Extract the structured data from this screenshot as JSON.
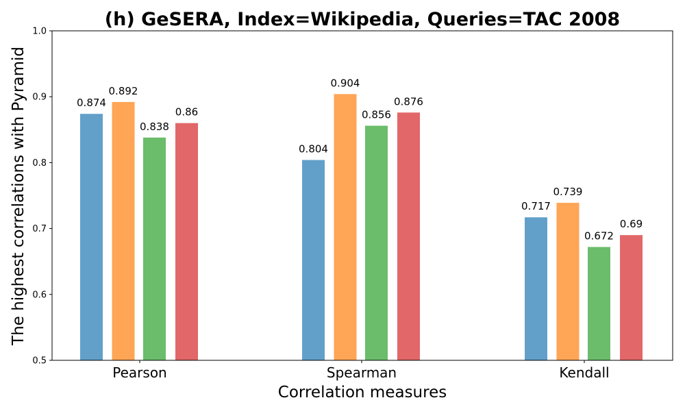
{
  "chart_data": {
    "type": "bar",
    "title": "(h) GeSERA, Index=Wikipedia, Queries=TAC 2008",
    "xlabel": "Correlation measures",
    "ylabel": "The highest correlations with Pyramid",
    "categories": [
      "Pearson",
      "Spearman",
      "Kendall"
    ],
    "ylim": [
      0.5,
      1.0
    ],
    "yticks": [
      "0.5",
      "0.6",
      "0.7",
      "0.8",
      "0.9",
      "1.0"
    ],
    "grid": false,
    "series": [
      {
        "values": [
          0.874,
          0.804,
          0.717
        ],
        "labels": [
          "0.874",
          "0.804",
          "0.717"
        ],
        "color": "#1f77b4"
      },
      {
        "values": [
          0.892,
          0.904,
          0.739
        ],
        "labels": [
          "0.892",
          "0.904",
          "0.739"
        ],
        "color": "#ff7f0e"
      },
      {
        "values": [
          0.838,
          0.856,
          0.672
        ],
        "labels": [
          "0.838",
          "0.856",
          "0.672"
        ],
        "color": "#2ca02c"
      },
      {
        "values": [
          0.86,
          0.876,
          0.69
        ],
        "labels": [
          "0.86",
          "0.876",
          "0.69"
        ],
        "color": "#d62728"
      }
    ]
  }
}
